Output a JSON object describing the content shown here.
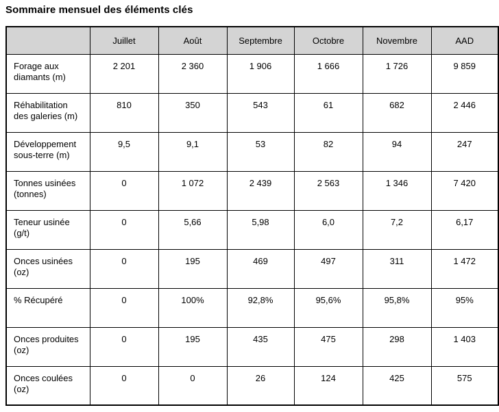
{
  "title": "Sommaire mensuel des éléments clés",
  "table": {
    "columns": [
      "",
      "Juillet",
      "Août",
      "Septembre",
      "Octobre",
      "Novembre",
      "AAD"
    ],
    "rows": [
      {
        "label": "Forage aux diamants (m)",
        "values": [
          "2 201",
          "2 360",
          "1 906",
          "1 666",
          "1 726",
          "9 859"
        ]
      },
      {
        "label": "Réhabilitation des galeries (m)",
        "values": [
          "810",
          "350",
          "543",
          "61",
          "682",
          "2 446"
        ]
      },
      {
        "label": "Développement sous-terre (m)",
        "values": [
          "9,5",
          "9,1",
          "53",
          "82",
          "94",
          "247"
        ]
      },
      {
        "label": "Tonnes usinées (tonnes)",
        "values": [
          "0",
          "1 072",
          "2 439",
          "2 563",
          "1 346",
          "7 420"
        ]
      },
      {
        "label": "Teneur usinée (g/t)",
        "values": [
          "0",
          "5,66",
          "5,98",
          "6,0",
          "7,2",
          "6,17"
        ]
      },
      {
        "label": "Onces usinées (oz)",
        "values": [
          "0",
          "195",
          "469",
          "497",
          "311",
          "1 472"
        ]
      },
      {
        "label": "% Récupéré",
        "values": [
          "0",
          "100%",
          "92,8%",
          "95,6%",
          "95,8%",
          "95%"
        ]
      },
      {
        "label": "Onces produites (oz)",
        "values": [
          "0",
          "195",
          "435",
          "475",
          "298",
          "1 403"
        ]
      },
      {
        "label": "Onces coulées (oz)",
        "values": [
          "0",
          "0",
          "26",
          "124",
          "425",
          "575"
        ]
      }
    ],
    "colors": {
      "header_bg": "#d4d4d4",
      "border": "#000000",
      "text": "#000000"
    }
  }
}
